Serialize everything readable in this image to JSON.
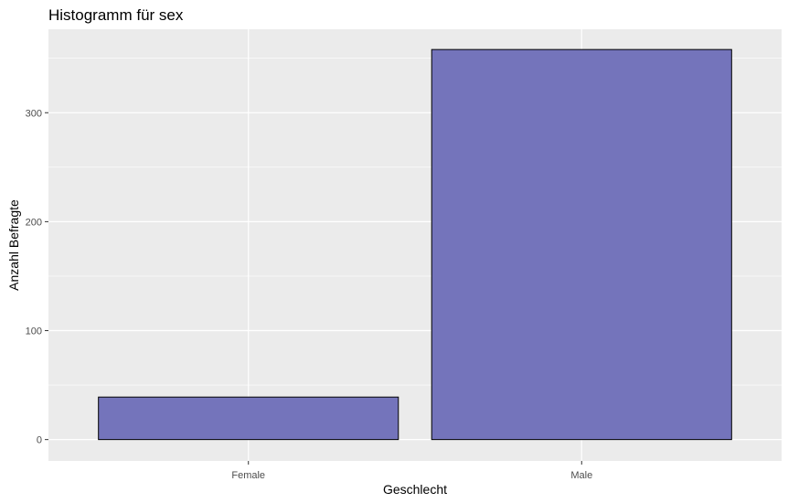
{
  "chart_data": {
    "type": "bar",
    "title": "Histogramm für sex",
    "xlabel": "Geschlecht",
    "ylabel": "Anzahl Befragte",
    "categories": [
      "Female",
      "Male"
    ],
    "values": [
      39,
      358
    ],
    "ylim": [
      -19.6,
      376.6
    ],
    "yticks": [
      0,
      100,
      200,
      300
    ],
    "ytick_labels": [
      "0",
      "100",
      "200",
      "300"
    ],
    "grid": true,
    "legend": "none",
    "colors": {
      "bar_fill": "#7474bb",
      "bar_stroke": "#000000",
      "panel_background": "#ebebeb",
      "grid_major": "#ffffff",
      "tick_mark": "#333333"
    }
  }
}
